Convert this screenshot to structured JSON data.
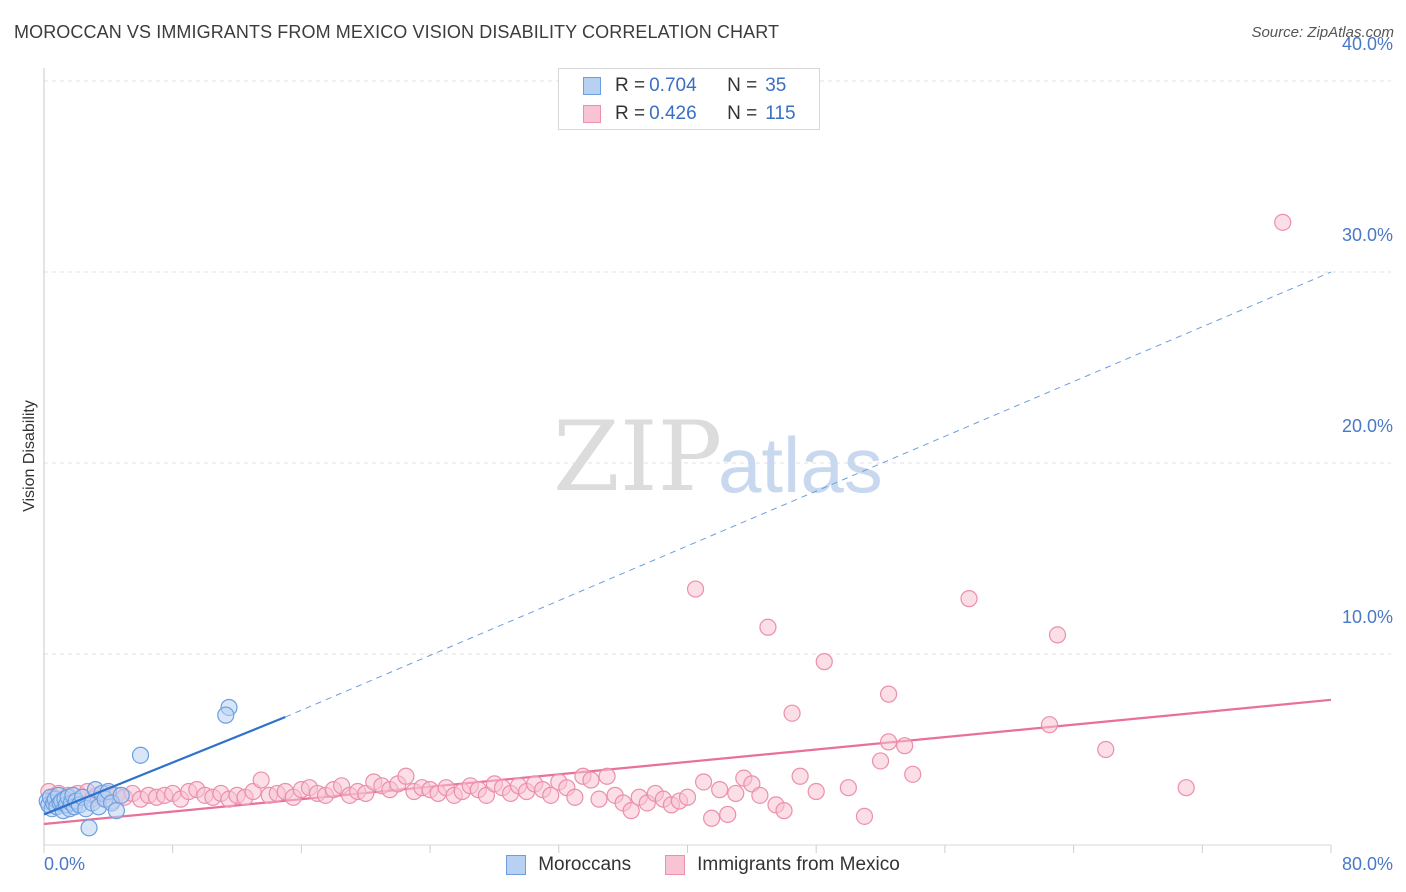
{
  "title": "MOROCCAN VS IMMIGRANTS FROM MEXICO VISION DISABILITY CORRELATION CHART",
  "source": "Source: ZipAtlas.com",
  "watermark": {
    "zip": "ZIP",
    "atlas": "atlas"
  },
  "stats": [
    {
      "r_label": "R = ",
      "r_value": "0.704",
      "n_label": "N = ",
      "n_value": "35"
    },
    {
      "r_label": "R = ",
      "r_value": "0.426",
      "n_label": "N = ",
      "n_value": "115"
    }
  ],
  "legend": {
    "moroccans": "Moroccans",
    "mexico": "Immigrants from Mexico"
  },
  "colors": {
    "blue_fill": "#b8d1f3",
    "blue_stroke": "#6d9fe0",
    "blue_line": "#2f72cc",
    "pink_fill": "#f8c3d2",
    "pink_stroke": "#ec8fac",
    "pink_line": "#e8709a",
    "tick": "#4a78c8",
    "grid": "#e2e2e2"
  },
  "chart_data": {
    "type": "scatter",
    "title": "MOROCCAN VS IMMIGRANTS FROM MEXICO VISION DISABILITY CORRELATION CHART",
    "xlabel": "",
    "ylabel": "Vision Disability",
    "xlim": [
      0,
      80
    ],
    "ylim": [
      0,
      41
    ],
    "x_ticks": [
      "0.0%",
      "80.0%"
    ],
    "y_ticks": [
      {
        "value": 10,
        "label": "10.0%"
      },
      {
        "value": 20,
        "label": "20.0%"
      },
      {
        "value": 30,
        "label": "30.0%"
      },
      {
        "value": 40,
        "label": "40.0%"
      }
    ],
    "grid": true,
    "legend_position": "bottom-center",
    "series": [
      {
        "name": "Moroccans",
        "color": "blue",
        "trend": {
          "x": [
            0,
            15
          ],
          "y": [
            1.6,
            6.7
          ],
          "extended_to": [
            80,
            30.0
          ]
        },
        "points": [
          [
            0.2,
            2.3
          ],
          [
            0.3,
            2.1
          ],
          [
            0.4,
            2.5
          ],
          [
            0.5,
            1.9
          ],
          [
            0.6,
            2.2
          ],
          [
            0.7,
            2.4
          ],
          [
            0.8,
            2.0
          ],
          [
            0.9,
            2.6
          ],
          [
            1.0,
            2.2
          ],
          [
            1.1,
            2.3
          ],
          [
            1.2,
            1.8
          ],
          [
            1.3,
            2.4
          ],
          [
            1.4,
            2.1
          ],
          [
            1.5,
            2.5
          ],
          [
            1.6,
            1.9
          ],
          [
            1.7,
            2.2
          ],
          [
            1.8,
            2.6
          ],
          [
            1.9,
            2.0
          ],
          [
            2.0,
            2.3
          ],
          [
            2.2,
            2.1
          ],
          [
            2.4,
            2.5
          ],
          [
            2.6,
            1.9
          ],
          [
            2.8,
            0.9
          ],
          [
            3.0,
            2.2
          ],
          [
            3.2,
            2.9
          ],
          [
            3.4,
            2.0
          ],
          [
            3.6,
            2.7
          ],
          [
            3.8,
            2.4
          ],
          [
            4.0,
            2.8
          ],
          [
            4.2,
            2.2
          ],
          [
            4.5,
            1.8
          ],
          [
            4.8,
            2.6
          ],
          [
            6.0,
            4.7
          ],
          [
            11.5,
            7.2
          ],
          [
            11.3,
            6.8
          ]
        ]
      },
      {
        "name": "Immigrants from Mexico",
        "color": "pink",
        "trend": {
          "x": [
            0,
            80
          ],
          "y": [
            1.1,
            7.6
          ]
        },
        "points": [
          [
            0.3,
            2.8
          ],
          [
            0.6,
            2.5
          ],
          [
            0.9,
            2.7
          ],
          [
            1.2,
            2.4
          ],
          [
            1.5,
            2.6
          ],
          [
            1.8,
            2.3
          ],
          [
            2.1,
            2.7
          ],
          [
            2.4,
            2.5
          ],
          [
            2.7,
            2.8
          ],
          [
            3.0,
            2.4
          ],
          [
            3.3,
            2.6
          ],
          [
            3.6,
            2.5
          ],
          [
            3.9,
            2.7
          ],
          [
            4.2,
            2.3
          ],
          [
            4.5,
            2.6
          ],
          [
            5.0,
            2.5
          ],
          [
            5.5,
            2.7
          ],
          [
            6.0,
            2.4
          ],
          [
            6.5,
            2.6
          ],
          [
            7.0,
            2.5
          ],
          [
            7.5,
            2.6
          ],
          [
            8.0,
            2.7
          ],
          [
            8.5,
            2.4
          ],
          [
            9.0,
            2.8
          ],
          [
            9.5,
            2.9
          ],
          [
            10.0,
            2.6
          ],
          [
            10.5,
            2.5
          ],
          [
            11.0,
            2.7
          ],
          [
            11.5,
            2.4
          ],
          [
            12.0,
            2.6
          ],
          [
            12.5,
            2.5
          ],
          [
            13.0,
            2.8
          ],
          [
            13.5,
            3.4
          ],
          [
            14.0,
            2.6
          ],
          [
            14.5,
            2.7
          ],
          [
            15.0,
            2.8
          ],
          [
            15.5,
            2.5
          ],
          [
            16.0,
            2.9
          ],
          [
            16.5,
            3.0
          ],
          [
            17.0,
            2.7
          ],
          [
            17.5,
            2.6
          ],
          [
            18.0,
            2.9
          ],
          [
            18.5,
            3.1
          ],
          [
            19.0,
            2.6
          ],
          [
            19.5,
            2.8
          ],
          [
            20.0,
            2.7
          ],
          [
            20.5,
            3.3
          ],
          [
            21.0,
            3.1
          ],
          [
            21.5,
            2.9
          ],
          [
            22.0,
            3.2
          ],
          [
            22.5,
            3.6
          ],
          [
            23.0,
            2.8
          ],
          [
            23.5,
            3.0
          ],
          [
            24.0,
            2.9
          ],
          [
            24.5,
            2.7
          ],
          [
            25.0,
            3.0
          ],
          [
            25.5,
            2.6
          ],
          [
            26.0,
            2.8
          ],
          [
            26.5,
            3.1
          ],
          [
            27.0,
            2.9
          ],
          [
            27.5,
            2.6
          ],
          [
            28.0,
            3.2
          ],
          [
            28.5,
            3.0
          ],
          [
            29.0,
            2.7
          ],
          [
            29.5,
            3.1
          ],
          [
            30.0,
            2.8
          ],
          [
            30.5,
            3.2
          ],
          [
            31.0,
            2.9
          ],
          [
            31.5,
            2.6
          ],
          [
            32.0,
            3.3
          ],
          [
            32.5,
            3.0
          ],
          [
            33.0,
            2.5
          ],
          [
            33.5,
            3.6
          ],
          [
            34.0,
            3.4
          ],
          [
            34.5,
            2.4
          ],
          [
            35.0,
            3.6
          ],
          [
            35.5,
            2.6
          ],
          [
            36.0,
            2.2
          ],
          [
            36.5,
            1.8
          ],
          [
            37.0,
            2.5
          ],
          [
            37.5,
            2.2
          ],
          [
            38.0,
            2.7
          ],
          [
            38.5,
            2.4
          ],
          [
            39.0,
            2.1
          ],
          [
            39.5,
            2.3
          ],
          [
            40.0,
            2.5
          ],
          [
            40.5,
            13.4
          ],
          [
            41.0,
            3.3
          ],
          [
            41.5,
            1.4
          ],
          [
            42.0,
            2.9
          ],
          [
            42.5,
            1.6
          ],
          [
            43.0,
            2.7
          ],
          [
            43.5,
            3.5
          ],
          [
            44.0,
            3.2
          ],
          [
            44.5,
            2.6
          ],
          [
            45.0,
            11.4
          ],
          [
            45.5,
            2.1
          ],
          [
            46.0,
            1.8
          ],
          [
            46.5,
            6.9
          ],
          [
            47.0,
            3.6
          ],
          [
            48.0,
            2.8
          ],
          [
            48.5,
            9.6
          ],
          [
            50.0,
            3.0
          ],
          [
            51.0,
            1.5
          ],
          [
            52.0,
            4.4
          ],
          [
            52.5,
            7.9
          ],
          [
            52.5,
            5.4
          ],
          [
            53.5,
            5.2
          ],
          [
            54.0,
            3.7
          ],
          [
            57.5,
            12.9
          ],
          [
            62.5,
            6.3
          ],
          [
            63.0,
            11.0
          ],
          [
            66.0,
            5.0
          ],
          [
            71.0,
            3.0
          ],
          [
            77.0,
            32.6
          ]
        ]
      }
    ]
  }
}
